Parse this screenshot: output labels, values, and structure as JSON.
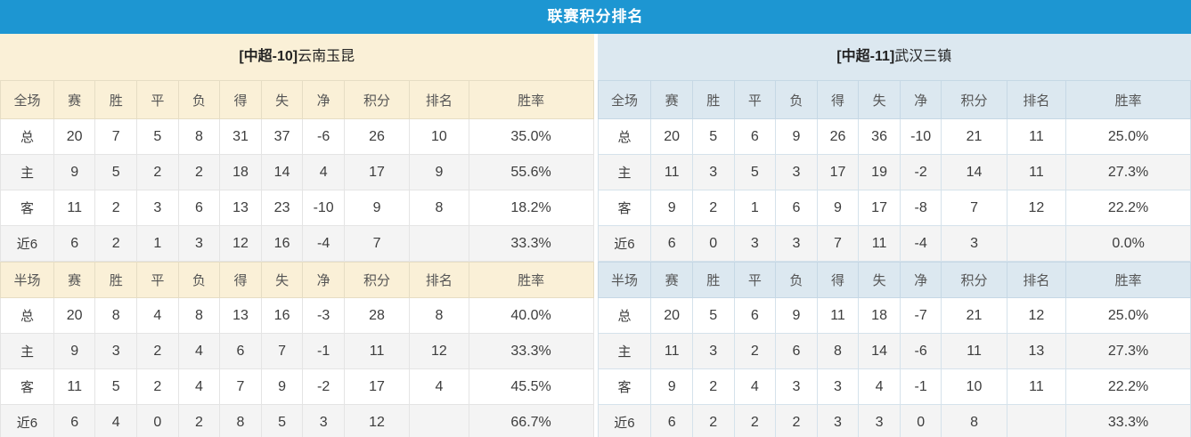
{
  "title": "联赛积分排名",
  "colors": {
    "title_bar_bg": "#1d96d2",
    "title_bar_text": "#ffffff",
    "left_panel_band": "#faf0d7",
    "right_panel_band": "#dce8f0",
    "points_and_rate_red": "#e23b2e",
    "rank_blue": "#3e7fc1",
    "home_label_pink": "#cf5a71",
    "away_label_purple": "#5457c8",
    "alt_row_bg": "#f4f4f4"
  },
  "teams": [
    {
      "tag": "[中超-10]",
      "name": "云南玉昆",
      "full": {
        "header": [
          "全场",
          "赛",
          "胜",
          "平",
          "负",
          "得",
          "失",
          "净",
          "积分",
          "排名",
          "胜率"
        ],
        "rows": [
          {
            "label": "总",
            "type": "total",
            "cells": [
              "20",
              "7",
              "5",
              "8",
              "31",
              "37",
              "-6",
              "26",
              "10",
              "35.0%"
            ]
          },
          {
            "label": "主",
            "type": "home",
            "cells": [
              "9",
              "5",
              "2",
              "2",
              "18",
              "14",
              "4",
              "17",
              "9",
              "55.6%"
            ]
          },
          {
            "label": "客",
            "type": "away",
            "cells": [
              "11",
              "2",
              "3",
              "6",
              "13",
              "23",
              "-10",
              "9",
              "8",
              "18.2%"
            ]
          },
          {
            "label": "近6",
            "type": "recent",
            "cells": [
              "6",
              "2",
              "1",
              "3",
              "12",
              "16",
              "-4",
              "7",
              "",
              "33.3%"
            ]
          }
        ]
      },
      "half": {
        "header": [
          "半场",
          "赛",
          "胜",
          "平",
          "负",
          "得",
          "失",
          "净",
          "积分",
          "排名",
          "胜率"
        ],
        "rows": [
          {
            "label": "总",
            "type": "total",
            "cells": [
              "20",
              "8",
              "4",
              "8",
              "13",
              "16",
              "-3",
              "28",
              "8",
              "40.0%"
            ]
          },
          {
            "label": "主",
            "type": "home",
            "cells": [
              "9",
              "3",
              "2",
              "4",
              "6",
              "7",
              "-1",
              "11",
              "12",
              "33.3%"
            ]
          },
          {
            "label": "客",
            "type": "away",
            "cells": [
              "11",
              "5",
              "2",
              "4",
              "7",
              "9",
              "-2",
              "17",
              "4",
              "45.5%"
            ]
          },
          {
            "label": "近6",
            "type": "recent",
            "cells": [
              "6",
              "4",
              "0",
              "2",
              "8",
              "5",
              "3",
              "12",
              "",
              "66.7%"
            ]
          }
        ]
      }
    },
    {
      "tag": "[中超-11]",
      "name": "武汉三镇",
      "full": {
        "header": [
          "全场",
          "赛",
          "胜",
          "平",
          "负",
          "得",
          "失",
          "净",
          "积分",
          "排名",
          "胜率"
        ],
        "rows": [
          {
            "label": "总",
            "type": "total",
            "cells": [
              "20",
              "5",
              "6",
              "9",
              "26",
              "36",
              "-10",
              "21",
              "11",
              "25.0%"
            ]
          },
          {
            "label": "主",
            "type": "home",
            "cells": [
              "11",
              "3",
              "5",
              "3",
              "17",
              "19",
              "-2",
              "14",
              "11",
              "27.3%"
            ]
          },
          {
            "label": "客",
            "type": "away",
            "cells": [
              "9",
              "2",
              "1",
              "6",
              "9",
              "17",
              "-8",
              "7",
              "12",
              "22.2%"
            ]
          },
          {
            "label": "近6",
            "type": "recent",
            "cells": [
              "6",
              "0",
              "3",
              "3",
              "7",
              "11",
              "-4",
              "3",
              "",
              "0.0%"
            ]
          }
        ]
      },
      "half": {
        "header": [
          "半场",
          "赛",
          "胜",
          "平",
          "负",
          "得",
          "失",
          "净",
          "积分",
          "排名",
          "胜率"
        ],
        "rows": [
          {
            "label": "总",
            "type": "total",
            "cells": [
              "20",
              "5",
              "6",
              "9",
              "11",
              "18",
              "-7",
              "21",
              "12",
              "25.0%"
            ]
          },
          {
            "label": "主",
            "type": "home",
            "cells": [
              "11",
              "3",
              "2",
              "6",
              "8",
              "14",
              "-6",
              "11",
              "13",
              "27.3%"
            ]
          },
          {
            "label": "客",
            "type": "away",
            "cells": [
              "9",
              "2",
              "4",
              "3",
              "3",
              "4",
              "-1",
              "10",
              "11",
              "22.2%"
            ]
          },
          {
            "label": "近6",
            "type": "recent",
            "cells": [
              "6",
              "2",
              "2",
              "2",
              "3",
              "3",
              "0",
              "8",
              "",
              "33.3%"
            ]
          }
        ]
      }
    }
  ]
}
